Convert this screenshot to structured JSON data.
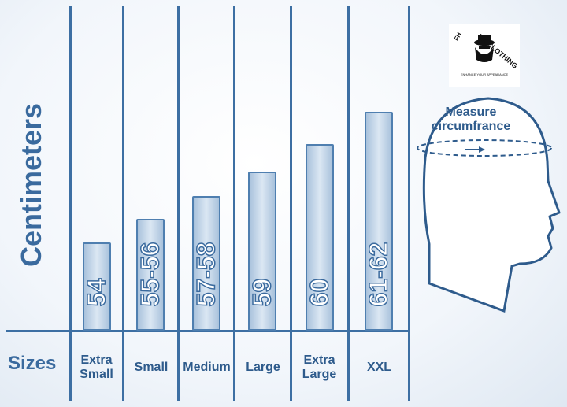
{
  "axis_label": "Centimeters",
  "row_label": "Sizes",
  "columns": [
    {
      "size": "Extra Small",
      "cm": "54"
    },
    {
      "size": "Small",
      "cm": "55-56"
    },
    {
      "size": "Medium",
      "cm": "57-58"
    },
    {
      "size": "Large",
      "cm": "59"
    },
    {
      "size": "Extra Large",
      "cm": "60"
    },
    {
      "size": "XXL",
      "cm": "61-62"
    }
  ],
  "logo": {
    "brand": "UK CLOTHING",
    "initials": "FH",
    "tagline": "ENHANCE YOUR APPEARANCE"
  },
  "head": {
    "label": "Measure circumfrance"
  }
}
